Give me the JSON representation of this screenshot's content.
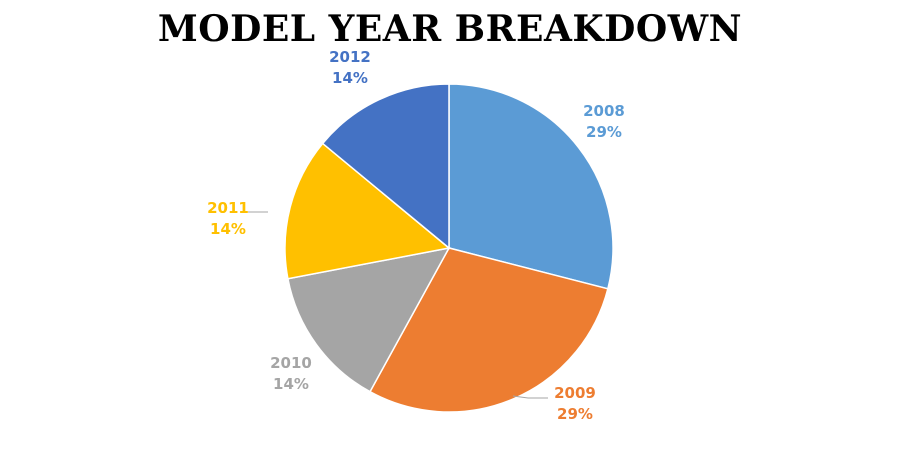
{
  "chart_data": {
    "type": "pie",
    "title": "MODEL YEAR BREAKDOWN",
    "slices": [
      {
        "label": "2008",
        "value": 29,
        "display": "29%",
        "color": "#5B9BD5"
      },
      {
        "label": "2009",
        "value": 29,
        "display": "29%",
        "color": "#ED7D31"
      },
      {
        "label": "2010",
        "value": 14,
        "display": "14%",
        "color": "#A5A5A5"
      },
      {
        "label": "2011",
        "value": 14,
        "display": "14%",
        "color": "#FFC000"
      },
      {
        "label": "2012",
        "value": 14,
        "display": "14%",
        "color": "#4472C4"
      }
    ],
    "start_angle_deg": 0,
    "direction": "clockwise",
    "legend": "none",
    "label_colors": {
      "2008": "#5B9BD5",
      "2009": "#ED7D31",
      "2010": "#A5A5A5",
      "2011": "#FFC000",
      "2012": "#4472C4"
    },
    "leader_line_color": "#A6A6A6"
  }
}
